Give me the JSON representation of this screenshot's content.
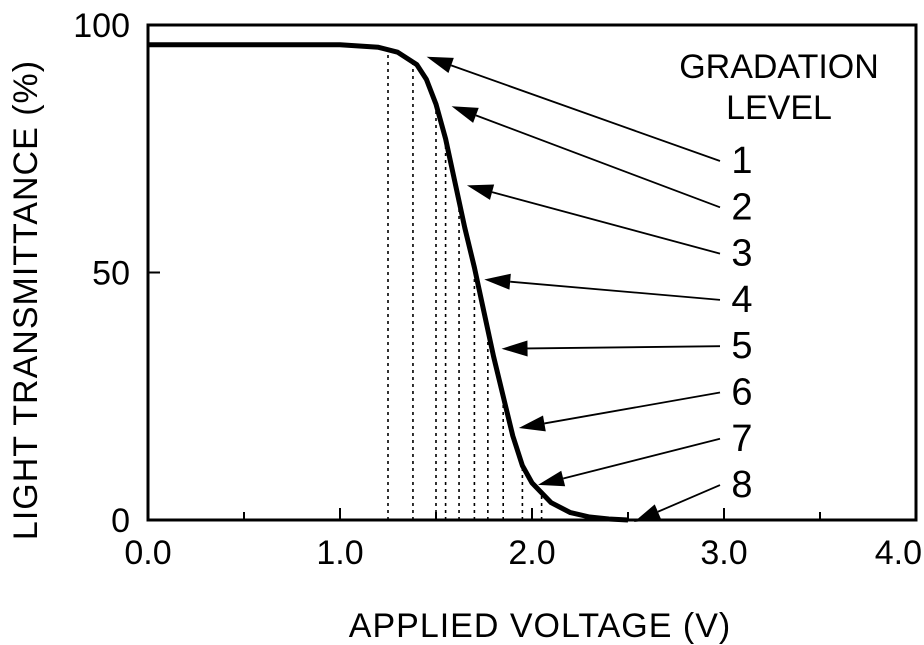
{
  "chart_data": {
    "type": "line",
    "title": "",
    "xlabel": "APPLIED VOLTAGE (V)",
    "ylabel": "LIGHT TRANSMITTANCE (%)",
    "xlim": [
      0,
      4
    ],
    "ylim": [
      0,
      100
    ],
    "x_ticks": [
      "0.0",
      "1.0",
      "2.0",
      "3.0",
      "4.0"
    ],
    "y_ticks": [
      "0",
      "50",
      "100"
    ],
    "grid": false,
    "legend_title": [
      "GRADATION",
      "LEVEL"
    ],
    "series": [
      {
        "x": [
          0.0,
          0.5,
          1.0,
          1.2,
          1.3,
          1.4,
          1.45,
          1.5,
          1.55,
          1.6,
          1.65,
          1.7,
          1.75,
          1.8,
          1.85,
          1.9,
          1.95,
          2.0,
          2.1,
          2.2,
          2.3,
          2.4,
          2.5
        ],
        "y": [
          96,
          96,
          96,
          95.5,
          94.5,
          92,
          89,
          84,
          77,
          68,
          59,
          51,
          42,
          33,
          25,
          17,
          11,
          7.5,
          3.5,
          1.5,
          0.6,
          0.2,
          0
        ]
      }
    ],
    "gradation_levels": [
      {
        "label": "1",
        "x": 1.42,
        "y": 94
      },
      {
        "label": "2",
        "x": 1.55,
        "y": 84
      },
      {
        "label": "3",
        "x": 1.63,
        "y": 68
      },
      {
        "label": "4",
        "x": 1.72,
        "y": 49
      },
      {
        "label": "5",
        "x": 1.81,
        "y": 35
      },
      {
        "label": "6",
        "x": 1.9,
        "y": 19
      },
      {
        "label": "7",
        "x": 2.0,
        "y": 7.5
      },
      {
        "label": "8",
        "x": 2.5,
        "y": 0
      }
    ],
    "dashed_lines_x": [
      1.25,
      1.38,
      1.5,
      1.55,
      1.62,
      1.7,
      1.77,
      1.85,
      1.95,
      2.05
    ]
  }
}
